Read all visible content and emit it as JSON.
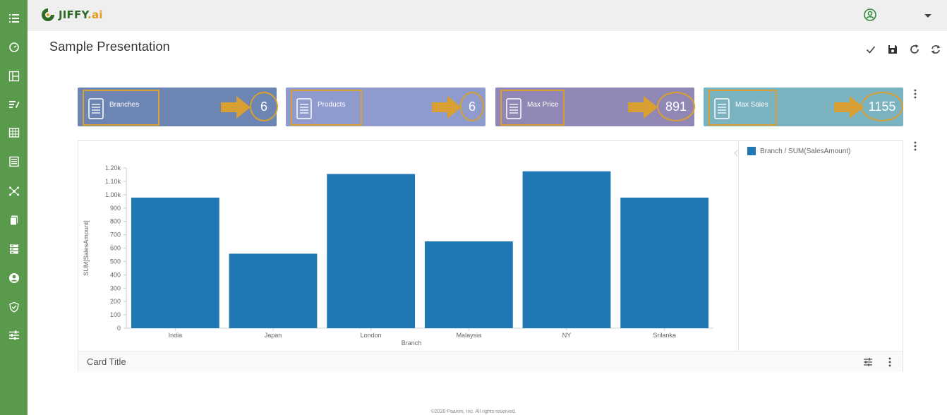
{
  "header": {
    "logo_text": "JIFFY",
    "logo_suffix": ".ai"
  },
  "page": {
    "title": "Sample Presentation"
  },
  "toolbar": {
    "icons": [
      "check-icon",
      "save-icon",
      "refresh-icon",
      "sync-icon"
    ]
  },
  "sidebar": {
    "icons": [
      "list-icon",
      "dashboard-icon",
      "layout-icon",
      "tasks-icon",
      "table-icon",
      "report-icon",
      "network-icon",
      "copy-icon",
      "database-icon",
      "user-icon",
      "shield-icon",
      "sliders-icon"
    ]
  },
  "kpis": [
    {
      "label": "Branches",
      "value": "6",
      "color": "#6d85b2"
    },
    {
      "label": "Products",
      "value": "6",
      "color": "#8f9bcc"
    },
    {
      "label": "Max Price",
      "value": "891",
      "color": "#9187b4"
    },
    {
      "label": "Max Sales",
      "value": "1155",
      "color": "#7bb2c0"
    }
  ],
  "chart_card": {
    "card_title": "Card Title",
    "legend": "Branch / SUM(SalesAmount)"
  },
  "chart_data": {
    "type": "bar",
    "categories": [
      "India",
      "Japan",
      "London",
      "Malaysia",
      "NY",
      "Srilanka"
    ],
    "values": [
      978,
      558,
      1155,
      650,
      1175,
      978
    ],
    "xlabel": "Branch",
    "ylabel": "SUM[SalesAmount]",
    "ylim": [
      0,
      1200
    ],
    "yticks": [
      0,
      100,
      200,
      300,
      400,
      500,
      600,
      700,
      800,
      900,
      1000,
      1100,
      1200
    ],
    "ytick_labels": [
      "0",
      "100",
      "200",
      "300",
      "400",
      "500",
      "600",
      "700",
      "800",
      "900",
      "1.00k",
      "1.10k",
      "1.20k"
    ],
    "bar_color": "#1f77b4",
    "grid": false,
    "legend_position": "right"
  },
  "footer": {
    "copyright": "©2020 Paanini, Inc. All rights reserved."
  }
}
